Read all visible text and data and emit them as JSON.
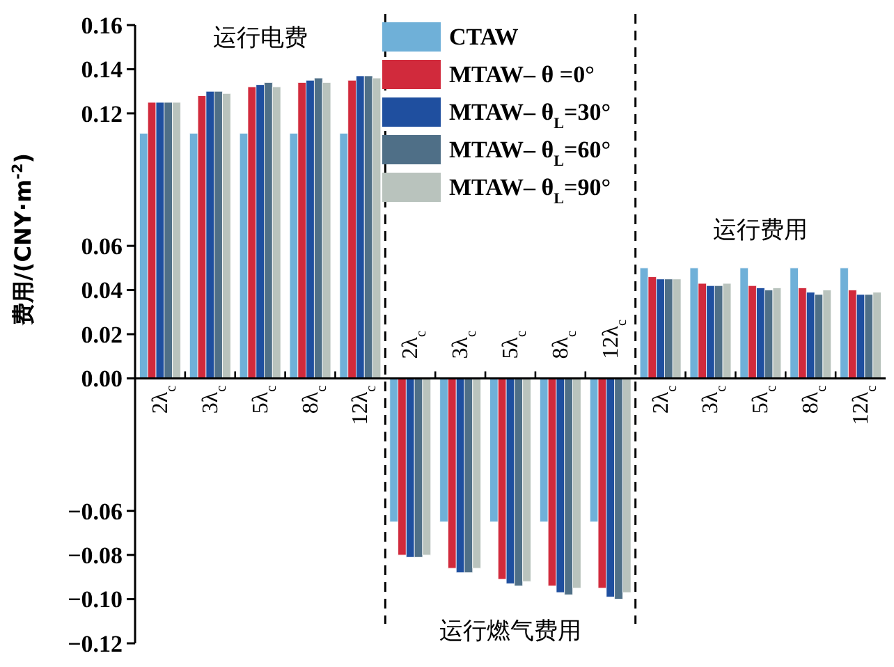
{
  "chart_data": {
    "type": "bar",
    "ylabel": "费用/(CNY·m$^{-2}$)",
    "categories": [
      "2λ$_{c}$",
      "3λ$_{c}$",
      "5λ$_{c}$",
      "8λ$_{c}$",
      "12λ$_{c}$",
      "2λ$_{c}$",
      "3λ$_{c}$",
      "5λ$_{c}$",
      "8λ$_{c}$",
      "12λ$_{c}$",
      "2λ$_{c}$",
      "3λ$_{c}$",
      "5λ$_{c}$",
      "8λ$_{c}$",
      "12λ$_{c}$"
    ],
    "series": [
      {
        "name": "CTAW",
        "color": "#6fb0d8",
        "values": [
          0.111,
          0.111,
          0.111,
          0.111,
          0.111,
          -0.065,
          -0.065,
          -0.065,
          -0.065,
          -0.065,
          0.05,
          0.05,
          0.05,
          0.05,
          0.05
        ]
      },
      {
        "name": "MTAW– θ =0°",
        "color": "#d12a3c",
        "values": [
          0.125,
          0.128,
          0.132,
          0.134,
          0.135,
          -0.08,
          -0.086,
          -0.091,
          -0.094,
          -0.095,
          0.046,
          0.043,
          0.042,
          0.041,
          0.04
        ]
      },
      {
        "name": "MTAW– θ$_{L}$=30°",
        "color": "#1f4f9f",
        "values": [
          0.125,
          0.13,
          0.133,
          0.135,
          0.137,
          -0.081,
          -0.088,
          -0.093,
          -0.097,
          -0.099,
          0.045,
          0.042,
          0.041,
          0.039,
          0.038
        ]
      },
      {
        "name": "MTAW– θ$_{L}$=60°",
        "color": "#4f6f87",
        "values": [
          0.125,
          0.13,
          0.134,
          0.136,
          0.137,
          -0.081,
          -0.088,
          -0.094,
          -0.098,
          -0.1,
          0.045,
          0.042,
          0.04,
          0.038,
          0.038
        ]
      },
      {
        "name": "MTAW– θ$_{L}$=90°",
        "color": "#b9c3bd",
        "values": [
          0.125,
          0.129,
          0.132,
          0.134,
          0.136,
          -0.08,
          -0.086,
          -0.092,
          -0.095,
          -0.097,
          0.045,
          0.043,
          0.041,
          0.04,
          0.039
        ]
      }
    ],
    "ylim": [
      -0.12,
      0.16
    ],
    "yticks": [
      0.16,
      0.14,
      0.12,
      0.06,
      0.04,
      0.02,
      {
        "value": 0,
        "label": "0.00"
      },
      {
        "value": -0.06,
        "label": "−0.06"
      },
      {
        "value": -0.08,
        "label": "−0.08"
      },
      {
        "value": -0.1,
        "label": "−0.10"
      },
      {
        "value": -0.12,
        "label": "−0.12"
      }
    ],
    "annotations": [
      "运行电费",
      "运行燃气费用",
      "运行费用"
    ],
    "legend": "top",
    "grid": false
  }
}
